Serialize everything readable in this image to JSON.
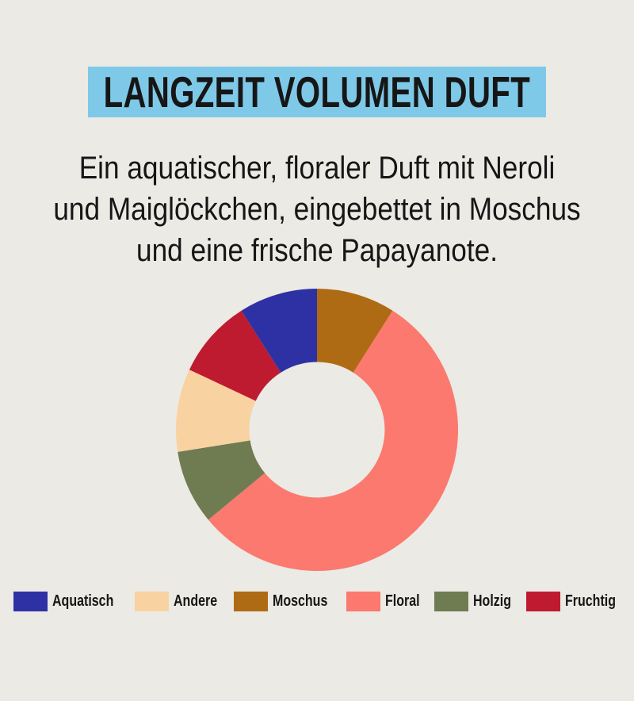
{
  "title": "LANGZEIT VOLUMEN DUFT",
  "description": {
    "lines": [
      "Ein aquatischer, floraler Duft mit Neroli",
      "und Maiglöckchen, eingebettet in Moschus",
      "und eine frische Papayanote."
    ]
  },
  "colors": {
    "page_background": "#EBEAE5",
    "title_banner_background": "#7FC9E8",
    "text": "#161616"
  },
  "chart_data": {
    "type": "pie",
    "subtype": "donut",
    "title": "",
    "inner_radius_ratio": 0.48,
    "start_angle_deg": 0,
    "order": "clockwise-from-top",
    "segments": [
      {
        "label": "Moschus",
        "value": 9,
        "color": "#AE6B13"
      },
      {
        "label": "Floral",
        "value": 55,
        "color": "#FB796E"
      },
      {
        "label": "Holzig",
        "value": 8.5,
        "color": "#6F7C52"
      },
      {
        "label": "Andere",
        "value": 9.5,
        "color": "#F9D2A2"
      },
      {
        "label": "Fruchtig",
        "value": 9,
        "color": "#BE1B30"
      },
      {
        "label": "Aquatisch",
        "value": 9,
        "color": "#2E31A3"
      }
    ],
    "legend_position": "bottom",
    "legend": [
      {
        "label": "Aquatisch",
        "color": "#2E31A3"
      },
      {
        "label": "Andere",
        "color": "#F9D2A2"
      },
      {
        "label": "Moschus",
        "color": "#AE6B13"
      },
      {
        "label": "Floral",
        "color": "#FB796E"
      },
      {
        "label": "Holzig",
        "color": "#6F7C52"
      },
      {
        "label": "Fruchtig",
        "color": "#BE1B30"
      }
    ]
  }
}
